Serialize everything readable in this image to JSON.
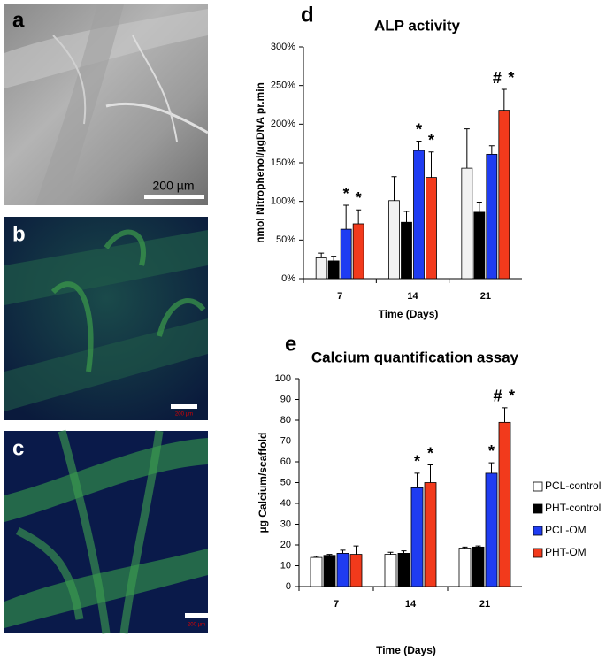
{
  "panels": [
    {
      "label": "a",
      "scale": "200 µm"
    },
    {
      "label": "b",
      "scale": "200 µm"
    },
    {
      "label": "c",
      "scale": "200 µm"
    }
  ],
  "chart_data": [
    {
      "type": "bar",
      "panel_label": "d",
      "title": "ALP activity",
      "x_label": "Time (Days)",
      "y_label": "nmol Nitrophenol/µgDNA pr.min",
      "categories": [
        "7",
        "14",
        "21"
      ],
      "series": [
        {
          "color": "#f2f2f2",
          "values": [
            27,
            101,
            143
          ],
          "errors": [
            6,
            31,
            51
          ]
        },
        {
          "color": "#000000",
          "values": [
            23,
            73,
            86
          ],
          "errors": [
            6,
            14,
            13
          ]
        },
        {
          "color": "#1f3cf2",
          "values": [
            64,
            166,
            161
          ],
          "errors": [
            31,
            12,
            11
          ]
        },
        {
          "color": "#f23a1c",
          "values": [
            71,
            131,
            218
          ],
          "errors": [
            18,
            33,
            27
          ]
        }
      ],
      "annotations": [
        {
          "series": 2,
          "category": 0,
          "text": "*"
        },
        {
          "series": 3,
          "category": 0,
          "text": "*"
        },
        {
          "series": 2,
          "category": 1,
          "text": "*"
        },
        {
          "series": 3,
          "category": 1,
          "text": "*"
        },
        {
          "series": 3,
          "category": 2,
          "text": "#"
        },
        {
          "series": 3,
          "category": 2,
          "text": "*"
        }
      ],
      "ylim": [
        0,
        300
      ],
      "yticks": [
        {
          "value": 0,
          "label": "0%"
        },
        {
          "value": 50,
          "label": "50%"
        },
        {
          "value": 100,
          "label": "100%"
        },
        {
          "value": 150,
          "label": "150%"
        },
        {
          "value": 200,
          "label": "200%"
        },
        {
          "value": 250,
          "label": "250%"
        },
        {
          "value": 300,
          "label": "300%"
        }
      ],
      "legend": false
    },
    {
      "type": "bar",
      "panel_label": "e",
      "title": "Calcium quantification assay",
      "x_label": "Time (Days)",
      "y_label": "µg Calcium/scaffold",
      "categories": [
        "7",
        "14",
        "21"
      ],
      "series": [
        {
          "name": "PCL-control",
          "color": "#ffffff",
          "values": [
            14,
            15.5,
            18.5
          ],
          "errors": [
            0.5,
            1,
            0.5
          ]
        },
        {
          "name": "PHT-control",
          "color": "#000000",
          "values": [
            15,
            16,
            19
          ],
          "errors": [
            0.5,
            1.2,
            0.5
          ]
        },
        {
          "name": "PCL-OM",
          "color": "#1f3cf2",
          "values": [
            16,
            47.5,
            54.5
          ],
          "errors": [
            1.5,
            7,
            5
          ]
        },
        {
          "name": "PHT-OM",
          "color": "#f23a1c",
          "values": [
            15.5,
            50,
            79
          ],
          "errors": [
            4,
            8.5,
            7
          ]
        }
      ],
      "annotations": [
        {
          "series": 2,
          "category": 1,
          "text": "*"
        },
        {
          "series": 3,
          "category": 1,
          "text": "*"
        },
        {
          "series": 2,
          "category": 2,
          "text": "*"
        },
        {
          "series": 3,
          "category": 2,
          "text": "#"
        },
        {
          "series": 3,
          "category": 2,
          "text": "*"
        }
      ],
      "ylim": [
        0,
        100
      ],
      "yticks": [
        0,
        10,
        20,
        30,
        40,
        50,
        60,
        70,
        80,
        90,
        100
      ],
      "legend": true,
      "legend_position": "right"
    }
  ]
}
